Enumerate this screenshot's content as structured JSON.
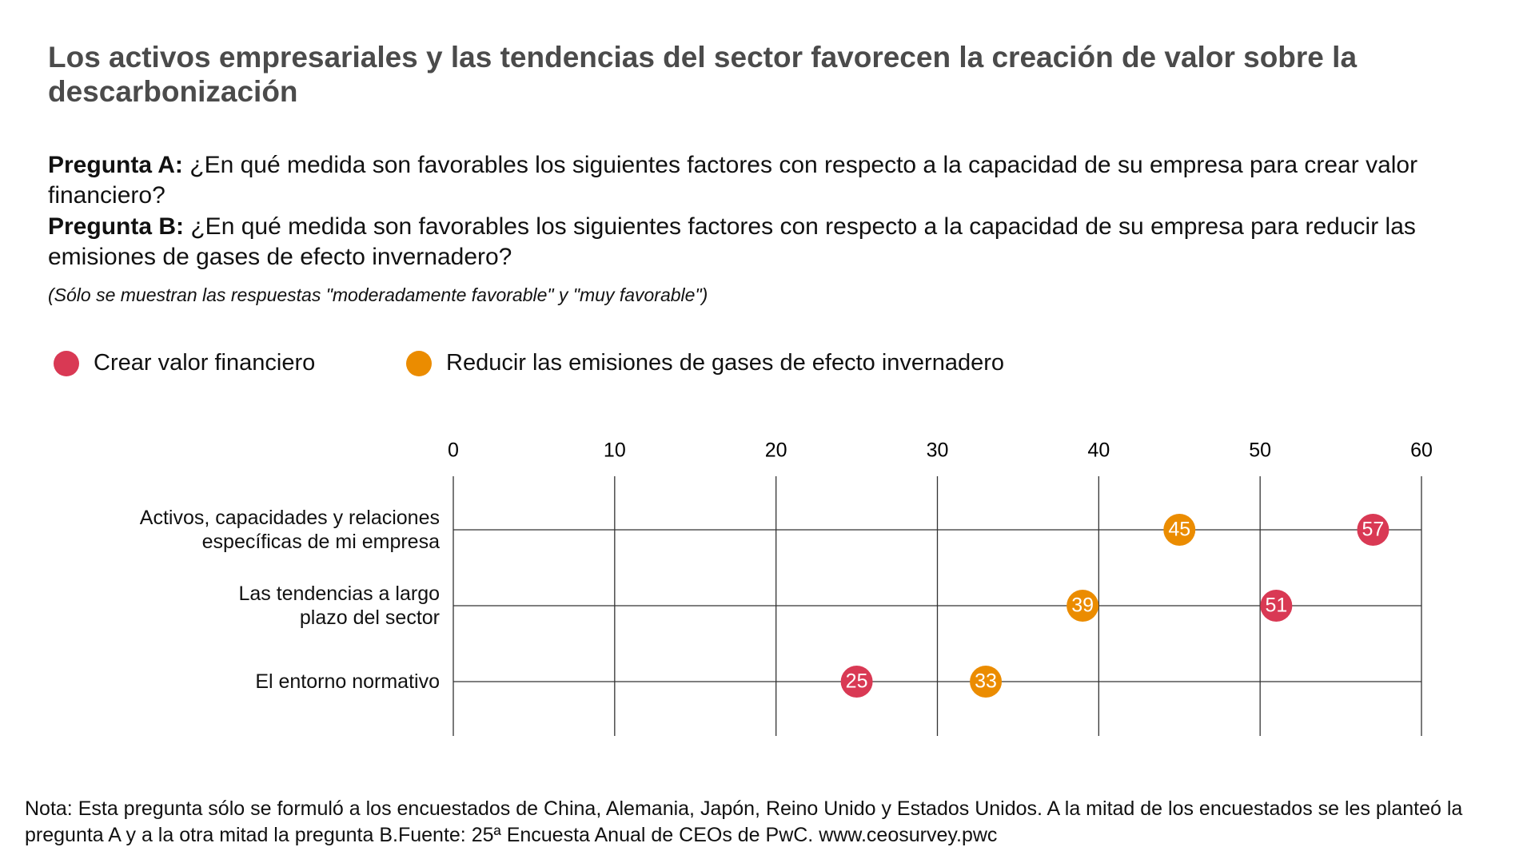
{
  "chart_data": {
    "type": "dot",
    "title": "Los activos empresariales y las tendencias del sector favorecen la creación de valor sobre la descarbonización",
    "question_a": {
      "label": "Pregunta A:",
      "text": "¿En qué medida son favorables los siguientes factores con respecto a la capacidad de su empresa para crear valor financiero?"
    },
    "question_b": {
      "label": "Pregunta B:",
      "text": "¿En qué medida son favorables los siguientes factores con respecto a la capacidad de su empresa para reducir las emisiones de gases de efecto invernadero?"
    },
    "subtitle": "(Sólo se muestran las respuestas \"moderadamente favorable\" y \"muy favorable\")",
    "categories": [
      "Activos, capacidades y relaciones específicas de mi empresa",
      "Las tendencias a largo plazo del sector",
      "El entorno normativo"
    ],
    "series": [
      {
        "name": "Crear valor financiero",
        "color": "#d93954",
        "values": [
          57,
          51,
          25
        ]
      },
      {
        "name": "Reducir las emisiones de gases de efecto invernadero",
        "color": "#eb8c00",
        "values": [
          45,
          39,
          33
        ]
      }
    ],
    "xlim": [
      0,
      60
    ],
    "xticks": [
      0,
      10,
      20,
      30,
      40,
      50,
      60
    ],
    "grid": true,
    "note": "Nota: Esta pregunta sólo se formuló a los encuestados de China, Alemania, Japón, Reino Unido y Estados Unidos. A la mitad de los encuestados se les planteó la pregunta A y a la otra mitad la pregunta B.Fuente: 25ª Encuesta Anual de CEOs de PwC. www.ceosurvey.pwc"
  }
}
